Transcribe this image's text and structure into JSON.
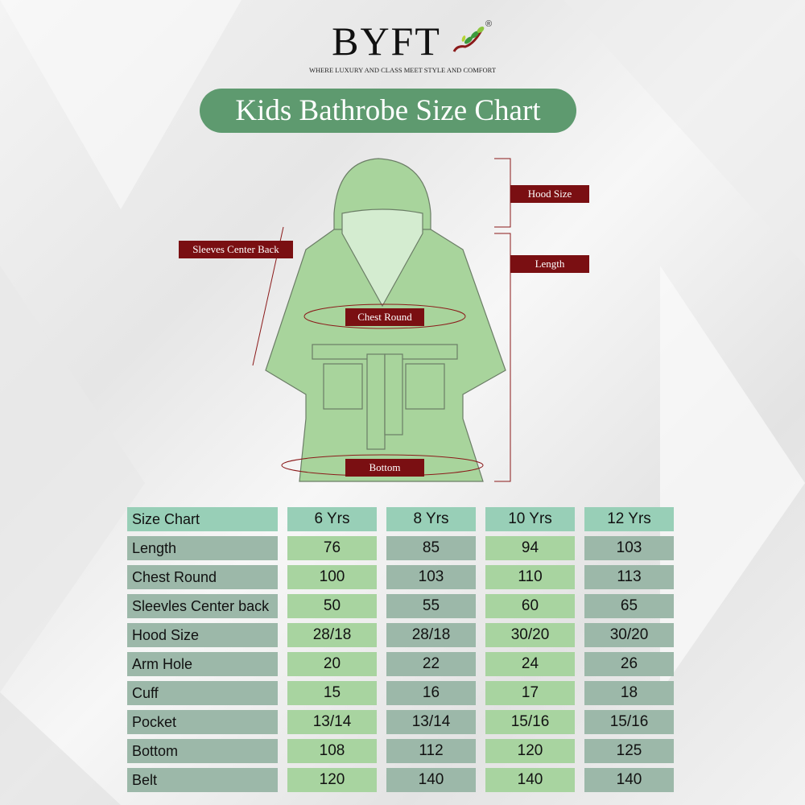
{
  "brand": {
    "name": "BYFT",
    "registered": "®",
    "tagline": "WHERE LUXURY AND CLASS MEET STYLE AND COMFORT"
  },
  "title": "Kids Bathrobe Size Chart",
  "diagram_labels": {
    "hood": "Hood Size",
    "length": "Length",
    "sleeves": "Sleeves Center Back",
    "chest": "Chest Round",
    "bottom": "Bottom"
  },
  "colors": {
    "title_bg": "#5e9a6f",
    "label_bg": "#7a0f12",
    "robe": "#a8d49c",
    "header_cell": "#98cfb7",
    "light_cell": "#a8d4a0",
    "dark_cell": "#9cb8a9"
  },
  "table": {
    "header": [
      "Size Chart",
      "6 Yrs",
      "8 Yrs",
      "10 Yrs",
      "12 Yrs"
    ],
    "rows": [
      [
        "Length",
        "76",
        "85",
        "94",
        "103"
      ],
      [
        "Chest Round",
        "100",
        "103",
        "110",
        "113"
      ],
      [
        "Sleevles Center back",
        "50",
        "55",
        "60",
        "65"
      ],
      [
        "Hood Size",
        "28/18",
        "28/18",
        "30/20",
        "30/20"
      ],
      [
        "Arm Hole",
        "20",
        "22",
        "24",
        "26"
      ],
      [
        "Cuff",
        "15",
        "16",
        "17",
        "18"
      ],
      [
        "Pocket",
        "13/14",
        "13/14",
        "15/16",
        "15/16"
      ],
      [
        "Bottom",
        "108",
        "112",
        "120",
        "125"
      ],
      [
        "Belt",
        "120",
        "140",
        "140",
        "140"
      ]
    ]
  }
}
